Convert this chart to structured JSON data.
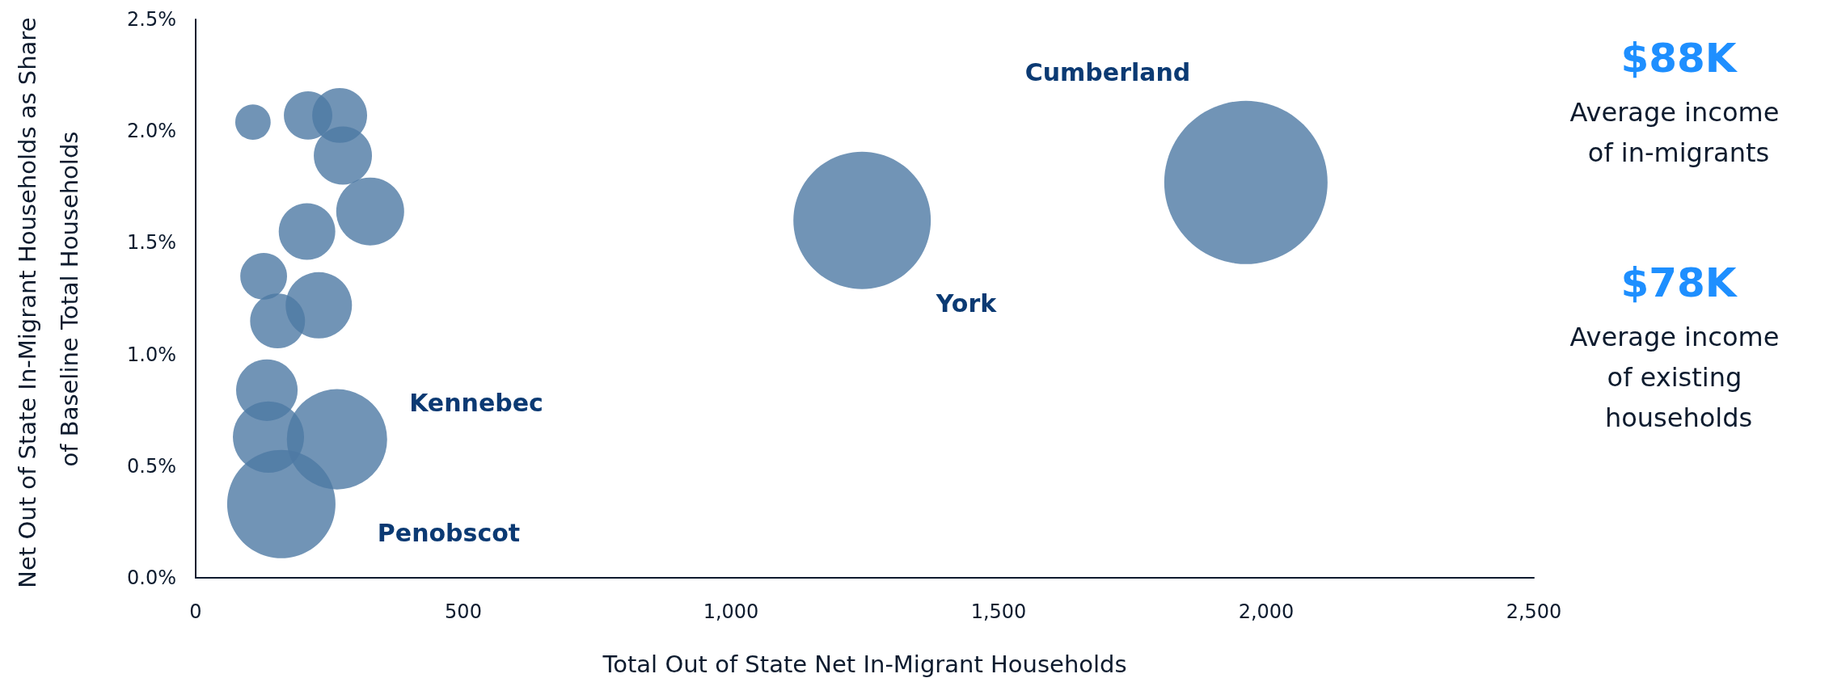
{
  "chart_data": {
    "type": "bubble",
    "xlabel": "Total Out of State Net In-Migrant Households",
    "ylabel": "Net Out of State In-Migrant Households as Share of Baseline Total Households",
    "x": [
      107,
      210,
      269,
      275,
      326,
      208,
      127,
      230,
      153,
      133,
      136,
      264,
      160,
      1245,
      1962
    ],
    "series": [
      {
        "color": "#4e79a4",
        "values": [
          2.04,
          2.07,
          2.07,
          1.89,
          1.64,
          1.55,
          1.35,
          1.22,
          1.15,
          0.84,
          0.63,
          0.62,
          0.33,
          1.6,
          1.77
        ],
        "sizes": [
          0.047,
          0.088,
          0.113,
          0.127,
          0.173,
          0.12,
          0.082,
          0.165,
          0.113,
          0.142,
          0.19,
          0.377,
          0.44,
          0.708,
          1
        ]
      }
    ],
    "xlim": [
      0,
      2500
    ],
    "xticks": [
      0,
      500,
      {
        "value": 1000,
        "label": "1,000"
      },
      {
        "value": 1500,
        "label": "1,500"
      },
      {
        "value": 2000,
        "label": "2,000"
      },
      {
        "value": 2500,
        "label": "2,500"
      }
    ],
    "ylim": [
      0,
      2.5
    ],
    "yticks": [
      {
        "value": 0,
        "label": "0.0%"
      },
      {
        "value": 0.5,
        "label": "0.5%"
      },
      {
        "value": 1,
        "label": "1.0%"
      },
      {
        "value": 1.5,
        "label": "1.5%"
      },
      {
        "value": 2,
        "label": "2.0%"
      },
      {
        "value": 2.5,
        "label": "2.5%"
      }
    ],
    "grid": false,
    "annotations": [
      "Cumberland",
      "York",
      "Kennebec",
      "Penobscot",
      "$88K",
      "Average income of in-migrants",
      "$78K",
      "Average income of existing households"
    ]
  }
}
